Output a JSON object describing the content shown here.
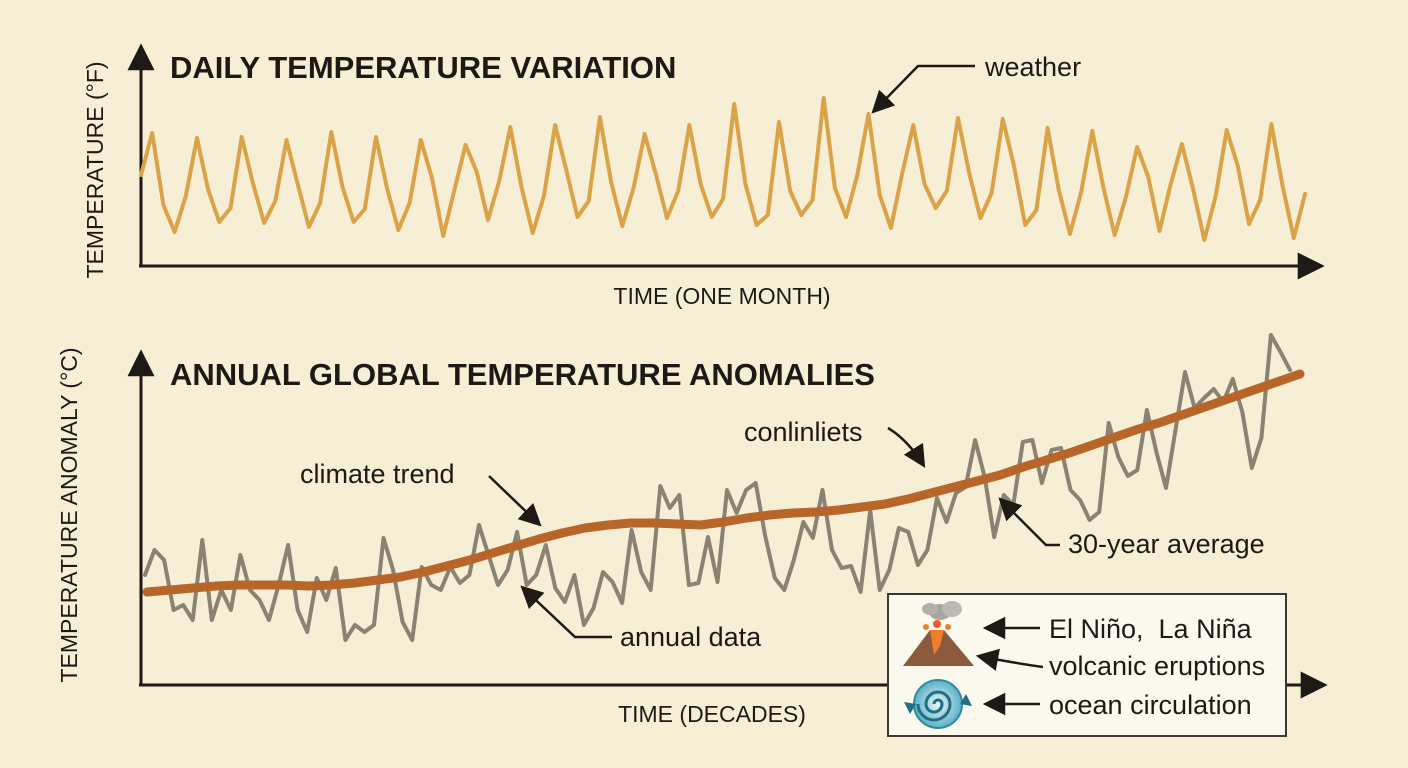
{
  "chart_data": [
    {
      "type": "line",
      "title": "DAILY TEMPERATURE VARIATION",
      "xlabel": "TIME (ONE MONTH)",
      "ylabel": "TEMPERATURE (°F)",
      "colors": {
        "line": "#dba347"
      },
      "annotations": [
        {
          "text": "weather"
        }
      ],
      "series": [
        {
          "values": [
            175,
            133,
            205,
            232,
            196,
            138,
            190,
            222,
            208,
            137,
            183,
            223,
            201,
            140,
            184,
            227,
            203,
            132,
            187,
            222,
            209,
            137,
            189,
            230,
            203,
            140,
            178,
            236,
            190,
            145,
            172,
            220,
            181,
            127,
            187,
            233,
            196,
            125,
            170,
            217,
            201,
            117,
            182,
            226,
            188,
            134,
            174,
            218,
            191,
            125,
            184,
            217,
            199,
            104,
            184,
            225,
            215,
            122,
            191,
            215,
            200,
            98,
            188,
            217,
            175,
            114,
            195,
            228,
            174,
            125,
            184,
            208,
            191,
            118,
            173,
            218,
            193,
            119,
            166,
            225,
            210,
            128,
            190,
            234,
            192,
            131,
            188,
            235,
            197,
            147,
            177,
            231,
            184,
            144,
            189,
            240,
            197,
            130,
            166,
            224,
            200,
            124,
            186,
            238,
            194
          ]
        }
      ]
    },
    {
      "type": "line",
      "title": "ANNUAL GLOBAL TEMPERATURE ANOMALIES",
      "xlabel": "TIME (DECADES)",
      "ylabel": "TEMPERATURE ANOMALY (°C)",
      "colors": {
        "annual": "#8a8374",
        "trend": "#b8652a"
      },
      "annotations": [
        {
          "text": "climate trend"
        },
        {
          "text": "conlinliets"
        },
        {
          "text": "30-year average"
        },
        {
          "text": "annual data"
        }
      ],
      "series": [
        {
          "values": [
            575,
            550,
            560,
            610,
            605,
            620,
            540,
            620,
            590,
            610,
            555,
            590,
            600,
            620,
            585,
            545,
            610,
            632,
            578,
            600,
            568,
            640,
            625,
            632,
            625,
            538,
            570,
            622,
            640,
            567,
            585,
            590,
            567,
            583,
            575,
            525,
            555,
            585,
            570,
            532,
            585,
            575,
            545,
            588,
            602,
            575,
            625,
            608,
            572,
            582,
            603,
            530,
            572,
            590,
            486,
            508,
            495,
            585,
            583,
            537,
            582,
            490,
            513,
            490,
            483,
            536,
            578,
            590,
            560,
            522,
            538,
            490,
            550,
            568,
            566,
            592,
            510,
            590,
            570,
            528,
            532,
            565,
            550,
            498,
            522,
            493,
            487,
            440,
            477,
            537,
            495,
            505,
            442,
            440,
            483,
            450,
            448,
            490,
            500,
            520,
            512,
            423,
            457,
            476,
            470,
            410,
            452,
            488,
            430,
            372,
            408,
            398,
            389,
            402,
            379,
            412,
            468,
            438,
            335,
            352,
            370
          ]
        },
        {
          "values": [
            592,
            590,
            588,
            586,
            585,
            585,
            585,
            586,
            585,
            583,
            580,
            577,
            572,
            566,
            560,
            553,
            546,
            539,
            533,
            528,
            525,
            523,
            523,
            524,
            525,
            522,
            518,
            515,
            513,
            512,
            510,
            507,
            504,
            499,
            493,
            487,
            481,
            475,
            467,
            460,
            453,
            445,
            437,
            429,
            422,
            414,
            406,
            398,
            390,
            382,
            374
          ]
        }
      ]
    }
  ],
  "legend": {
    "items": [
      {
        "label": "El Niño,  La Niña",
        "icon": "volcano-icon"
      },
      {
        "label": "volcanic eruptions",
        "icon": "volcano-icon"
      },
      {
        "label": "ocean circulation",
        "icon": "ocean-swirl-icon"
      }
    ]
  }
}
